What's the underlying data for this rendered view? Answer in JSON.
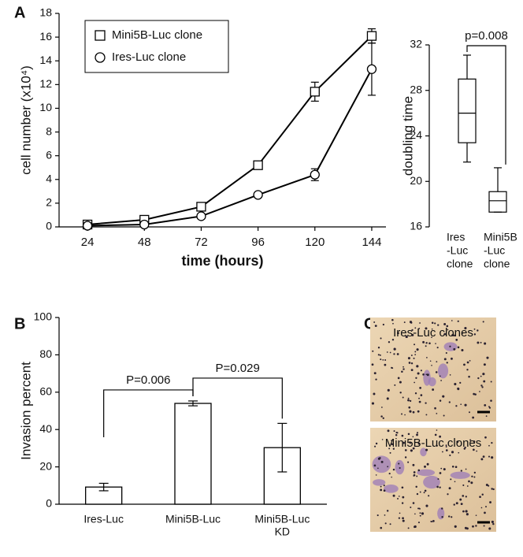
{
  "panel_labels": [
    "A",
    "B",
    "C"
  ],
  "chart_data": [
    {
      "type": "line",
      "xlabel": "time (hours)",
      "ylabel": "cell number (x10⁴)",
      "x": [
        24,
        48,
        72,
        96,
        120,
        144
      ],
      "xlim": [
        12,
        150
      ],
      "xticks": [
        24,
        48,
        72,
        96,
        120,
        144
      ],
      "ylim": [
        0,
        18
      ],
      "yticks": [
        0,
        2,
        4,
        6,
        8,
        10,
        12,
        14,
        16,
        18
      ],
      "series": [
        {
          "name": "Mini5B-Luc clone",
          "marker": "square",
          "color": "#000000",
          "values": [
            0.2,
            0.6,
            1.7,
            5.2,
            11.4,
            16.1
          ],
          "errors": [
            null,
            null,
            null,
            null,
            0.8,
            0.6
          ]
        },
        {
          "name": "Ires-Luc clone",
          "marker": "circle",
          "color": "#000000",
          "values": [
            0.1,
            0.2,
            0.9,
            2.7,
            4.4,
            13.3
          ],
          "errors": [
            null,
            null,
            null,
            null,
            0.5,
            2.2
          ]
        }
      ]
    },
    {
      "type": "box",
      "ylabel": "doubling time",
      "categories": [
        [
          "Ires",
          "-Luc",
          "clone"
        ],
        [
          "Mini5B",
          "-Luc",
          "clone"
        ]
      ],
      "ylim": [
        16,
        32
      ],
      "yticks": [
        16,
        20,
        24,
        28,
        32
      ],
      "boxes": [
        {
          "whisker_low": 21.7,
          "q1": 23.4,
          "median": 26.0,
          "q3": 29.0,
          "whisker_high": 31.1
        },
        {
          "whisker_low": 17.3,
          "q1": 17.3,
          "median": 18.3,
          "q3": 19.1,
          "whisker_high": 21.2
        }
      ],
      "annotations": [
        {
          "text": "p=0.008",
          "from": 0,
          "to": 1
        }
      ]
    },
    {
      "type": "bar",
      "ylabel": "Invasion percent",
      "categories": [
        [
          "Ires-Luc"
        ],
        [
          "Mini5B-Luc"
        ],
        [
          "Mini5B-Luc",
          "KD"
        ]
      ],
      "values": [
        9.2,
        54,
        30.3
      ],
      "errors": [
        2,
        1.3,
        13
      ],
      "color": "#ffffff",
      "ylim": [
        0,
        100
      ],
      "yticks": [
        0,
        20,
        40,
        60,
        80,
        100
      ],
      "annotations": [
        {
          "text": "P=0.006",
          "from": 0,
          "to": 1
        },
        {
          "text": "P=0.029",
          "from": 1,
          "to": 2
        }
      ]
    }
  ],
  "images": [
    {
      "label": "Ires-Luc clones"
    },
    {
      "label": "Mini5B-Luc clones"
    }
  ]
}
